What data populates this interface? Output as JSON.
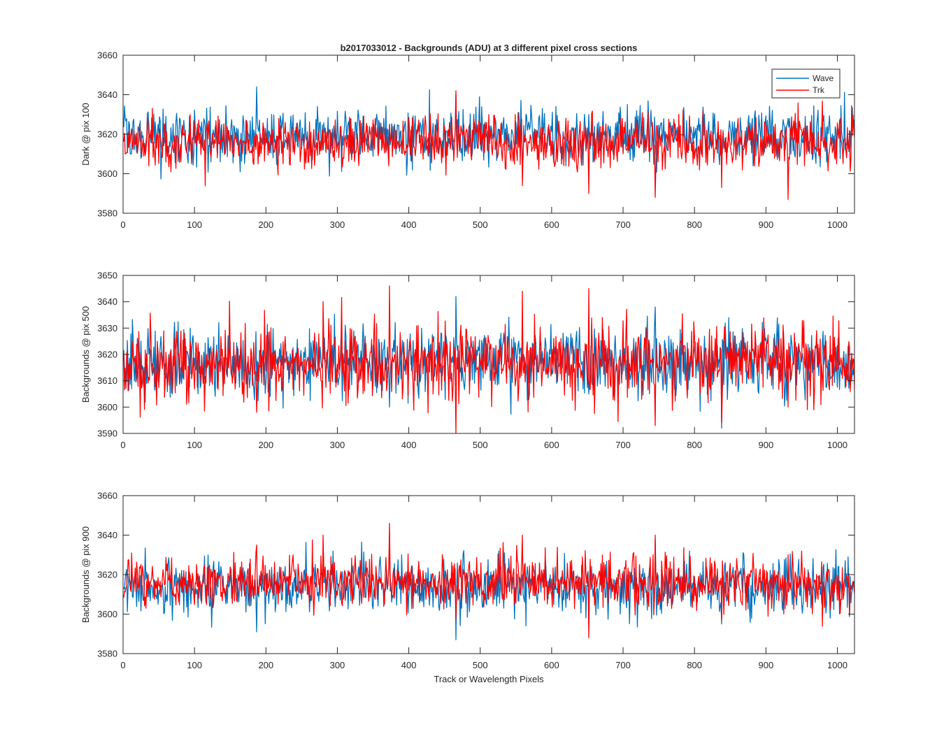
{
  "chart_data": [
    {
      "type": "line",
      "title": "b2017033012 - Backgrounds (ADU) at 3 different pixel cross sections",
      "xlabel": "",
      "ylabel": "Dark @ pix 100",
      "xlim": [
        0,
        1024
      ],
      "ylim": [
        3580,
        3660
      ],
      "xticks": [
        "0",
        "100",
        "200",
        "300",
        "400",
        "500",
        "600",
        "700",
        "800",
        "900",
        "1000"
      ],
      "yticks": [
        "3580",
        "3600",
        "3620",
        "3640",
        "3660"
      ],
      "grid": false,
      "legend": {
        "placement": "top-right",
        "entries": [
          "Wave",
          "Trk"
        ]
      },
      "series": [
        {
          "name": "Wave",
          "color": "#0072BD",
          "n_points": 1024,
          "mean": 3619,
          "std": 7.0,
          "sample_values": [
            3615,
            3644,
            3612,
            3625,
            3640,
            3605,
            3630,
            3620,
            3610,
            3628
          ],
          "range": [
            3596,
            3644
          ]
        },
        {
          "name": "Trk",
          "color": "#FF0000",
          "n_points": 1024,
          "mean": 3616,
          "std": 6.5,
          "sample_values": [
            3630,
            3620,
            3612,
            3625,
            3642,
            3594,
            3590,
            3588,
            3593,
            3587
          ],
          "range": [
            3587,
            3642
          ]
        }
      ]
    },
    {
      "type": "line",
      "title": "",
      "xlabel": "",
      "ylabel": "Backgrounds @ pix 500",
      "xlim": [
        0,
        1024
      ],
      "ylim": [
        3590,
        3650
      ],
      "xticks": [
        "0",
        "100",
        "200",
        "300",
        "400",
        "500",
        "600",
        "700",
        "800",
        "900",
        "1000"
      ],
      "yticks": [
        "3590",
        "3600",
        "3610",
        "3620",
        "3630",
        "3640",
        "3650"
      ],
      "grid": false,
      "series": [
        {
          "name": "Wave",
          "color": "#0072BD",
          "n_points": 1024,
          "mean": 3617,
          "std": 6.5,
          "sample_values": [
            3630,
            3610,
            3625,
            3600,
            3642,
            3620,
            3605,
            3638,
            3592,
            3615
          ],
          "range": [
            3592,
            3642
          ]
        },
        {
          "name": "Trk",
          "color": "#FF0000",
          "n_points": 1024,
          "mean": 3617,
          "std": 7.0,
          "sample_values": [
            3625,
            3598,
            3640,
            3646,
            3590,
            3644,
            3645,
            3593,
            3594,
            3600
          ],
          "range": [
            3590,
            3646
          ]
        }
      ]
    },
    {
      "type": "line",
      "title": "",
      "xlabel": "Track or Wavelength Pixels",
      "ylabel": "Backgrounds @ pix 900",
      "xlim": [
        0,
        1024
      ],
      "ylim": [
        3580,
        3660
      ],
      "xticks": [
        "0",
        "100",
        "200",
        "300",
        "400",
        "500",
        "600",
        "700",
        "800",
        "900",
        "1000"
      ],
      "yticks": [
        "3580",
        "3600",
        "3620",
        "3640",
        "3660"
      ],
      "grid": false,
      "series": [
        {
          "name": "Wave",
          "color": "#0072BD",
          "n_points": 1024,
          "mean": 3614,
          "std": 7.0,
          "sample_values": [
            3610,
            3591,
            3625,
            3641,
            3587,
            3620,
            3600,
            3638,
            3595,
            3612
          ],
          "range": [
            3587,
            3641
          ]
        },
        {
          "name": "Trk",
          "color": "#FF0000",
          "n_points": 1024,
          "mean": 3616,
          "std": 6.5,
          "sample_values": [
            3620,
            3635,
            3640,
            3646,
            3598,
            3640,
            3588,
            3640,
            3597,
            3630
          ],
          "range": [
            3588,
            3646
          ]
        }
      ]
    }
  ]
}
